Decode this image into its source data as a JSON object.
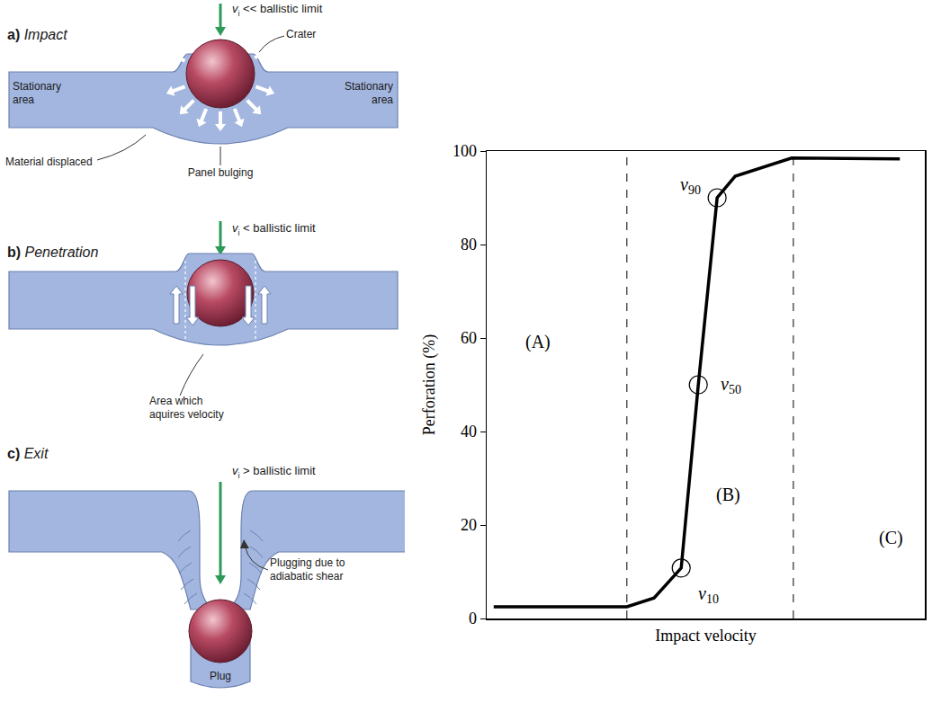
{
  "chart_data": {
    "type": "line",
    "x_label": "Impact velocity",
    "y_label": "Perforation (%)",
    "xlim": [
      0,
      100
    ],
    "ylim": [
      0,
      100
    ],
    "yticks": [
      0,
      20,
      40,
      60,
      80,
      100
    ],
    "tick_labels": "y",
    "grid": false,
    "color": "#000000",
    "x": [
      1.6,
      32.0,
      38.2,
      44.4,
      48.3,
      52.6,
      56.7,
      69.6,
      94.3
    ],
    "values": [
      2.5,
      2.5,
      4.4,
      10.8,
      50,
      90,
      94.6,
      98.5,
      98.3
    ],
    "marker": "circle",
    "markers_at": [
      {
        "text": "v",
        "sub": "10",
        "x": 44.4,
        "y": 10.8
      },
      {
        "text": "v",
        "sub": "50",
        "x": 48.3,
        "y": 50
      },
      {
        "text": "v",
        "sub": "90",
        "x": 52.6,
        "y": 90
      }
    ],
    "boundaries": [
      32,
      70
    ],
    "regions": [
      {
        "label": "(A)",
        "x": 11.7,
        "y": 59.2
      },
      {
        "label": "(B)",
        "x": 55.2,
        "y": 26.5
      },
      {
        "label": "(C)",
        "x": 92.4,
        "y": 17.3
      }
    ]
  },
  "diagrams": [
    {
      "letter": "a)",
      "title": "Impact",
      "velocity": {
        "symbol": "v",
        "sub": "i",
        "text": "<< ballistic limit"
      },
      "labels": [
        "Crater",
        "Stationary area",
        "Stationary area",
        "Material displaced",
        "Panel bulging"
      ]
    },
    {
      "letter": "b)",
      "title": "Penetration",
      "velocity": {
        "symbol": "v",
        "sub": "i",
        "text": "< ballistic limit"
      },
      "labels": [
        "Area which aquires velocity"
      ]
    },
    {
      "letter": "c)",
      "title": "Exit",
      "velocity": {
        "symbol": "v",
        "sub": "i",
        "text": "> ballistic limit"
      },
      "labels": [
        "Plugging due to adiabatic shear",
        "Plug"
      ]
    }
  ]
}
